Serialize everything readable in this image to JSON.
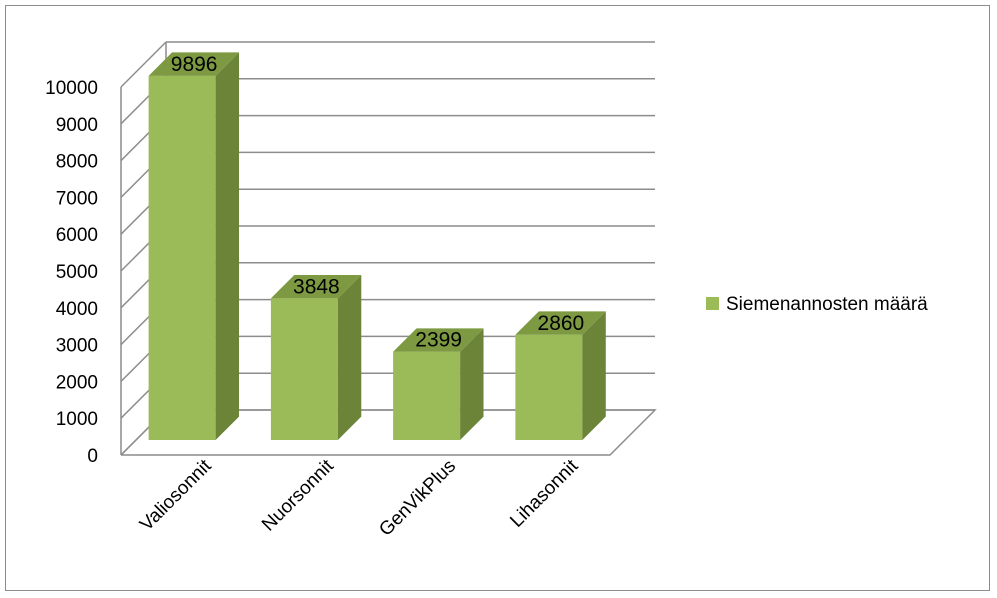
{
  "chart_data": {
    "type": "bar",
    "style": "3d-column",
    "categories": [
      "Valiosonnit",
      "Nuorsonnit",
      "GenVikPlus",
      "Lihasonnit"
    ],
    "series": [
      {
        "name": "Siemenannosten määrä",
        "values": [
          9896,
          3848,
          2399,
          2860
        ]
      }
    ],
    "ylim": [
      0,
      10000
    ],
    "yticks": [
      "0",
      "1000",
      "2000",
      "3000",
      "4000",
      "5000",
      "6000",
      "7000",
      "8000",
      "9000",
      "10000"
    ],
    "grid": true,
    "legend_position": "right",
    "data_labels": true
  },
  "colors": {
    "bar_front": "#9bbb59",
    "bar_side": "#6b8437",
    "bar_top": "#7d9a43",
    "grid": "#8c8c8c"
  }
}
